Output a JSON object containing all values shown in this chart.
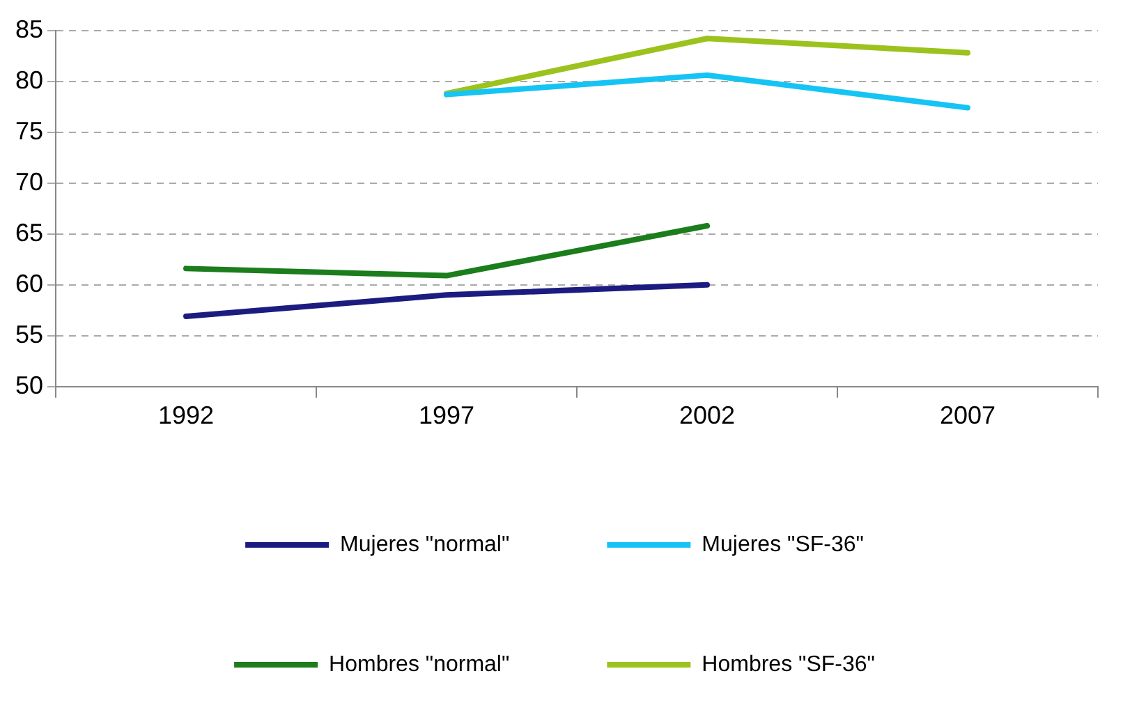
{
  "chart_data": {
    "type": "line",
    "categories": [
      "1992",
      "1997",
      "2002",
      "2007"
    ],
    "series": [
      {
        "name": "Mujeres \"normal\"",
        "color": "#1c1c80",
        "values": [
          56.9,
          59.0,
          60.0,
          null
        ]
      },
      {
        "name": "Mujeres \"SF-36\"",
        "color": "#16c4f4",
        "values": [
          null,
          78.7,
          80.6,
          77.4
        ]
      },
      {
        "name": "Hombres \"normal\"",
        "color": "#1b7d1b",
        "values": [
          61.6,
          60.9,
          65.8,
          null
        ]
      },
      {
        "name": "Hombres \"SF-36\"",
        "color": "#9cc21e",
        "values": [
          null,
          78.8,
          84.2,
          82.8
        ]
      }
    ],
    "ylim": [
      50,
      85
    ],
    "yticks": [
      50,
      55,
      60,
      65,
      70,
      75,
      80,
      85
    ],
    "grid": "y",
    "legend": "bottom",
    "marker": "none",
    "line_style": "solid"
  }
}
